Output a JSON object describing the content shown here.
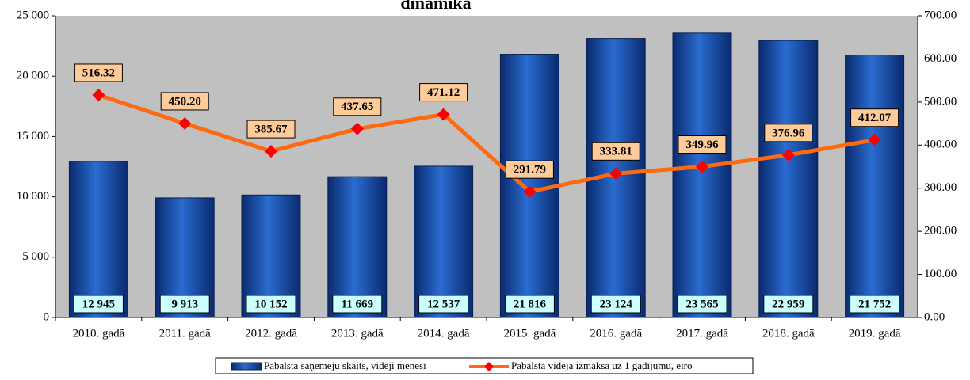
{
  "chart_data": {
    "type": "bar_line",
    "title": "dinamika",
    "categories": [
      "2010. gadā",
      "2011. gadā",
      "2012. gadā",
      "2013. gadā",
      "2014. gadā",
      "2015. gadā",
      "2016. gadā",
      "2017. gadā",
      "2018. gadā",
      "2019. gadā"
    ],
    "series": [
      {
        "name": "Pabalsta saņēmēju skaits, vidēji mēnesī",
        "type": "bar",
        "color": "#1f4f9f",
        "values": [
          12945,
          9913,
          10152,
          11669,
          12537,
          21816,
          23124,
          23565,
          22959,
          21752
        ],
        "value_labels": [
          "12 945",
          "9 913",
          "10 152",
          "11 669",
          "12 537",
          "21 816",
          "23 124",
          "23 565",
          "22 959",
          "21 752"
        ]
      },
      {
        "name": "Pabalsta vidējā izmaksa uz 1 gadījumu, eiro",
        "type": "line",
        "axis": "y2",
        "color": "#ff6a10",
        "marker_color": "#ff0000",
        "values": [
          516.32,
          450.2,
          385.67,
          437.65,
          471.12,
          291.79,
          333.81,
          349.96,
          376.96,
          412.07
        ],
        "value_labels": [
          "516.32",
          "450.20",
          "385.67",
          "437.65",
          "471.12",
          "291.79",
          "333.81",
          "349.96",
          "376.96",
          "412.07"
        ]
      }
    ],
    "ylim": [
      0,
      25000
    ],
    "yticks": [
      0,
      {
        "value": 5000,
        "label": "5 000"
      },
      {
        "value": 10000,
        "label": "10 000"
      },
      {
        "value": 15000,
        "label": "15 000"
      },
      {
        "value": 20000,
        "label": "20 000"
      },
      {
        "value": 25000,
        "label": "25 000"
      }
    ],
    "y2lim": [
      0,
      700
    ],
    "y2ticks": [
      {
        "value": 0,
        "label": "0.00"
      },
      {
        "value": 100,
        "label": "100.00"
      },
      {
        "value": 200,
        "label": "200.00"
      },
      {
        "value": 300,
        "label": "300.00"
      },
      {
        "value": 400,
        "label": "400.00"
      },
      {
        "value": 500,
        "label": "500.00"
      },
      {
        "value": 600,
        "label": "600.00"
      },
      {
        "value": 700,
        "label": "700.00"
      }
    ],
    "legend": "bottom",
    "grid": false
  }
}
